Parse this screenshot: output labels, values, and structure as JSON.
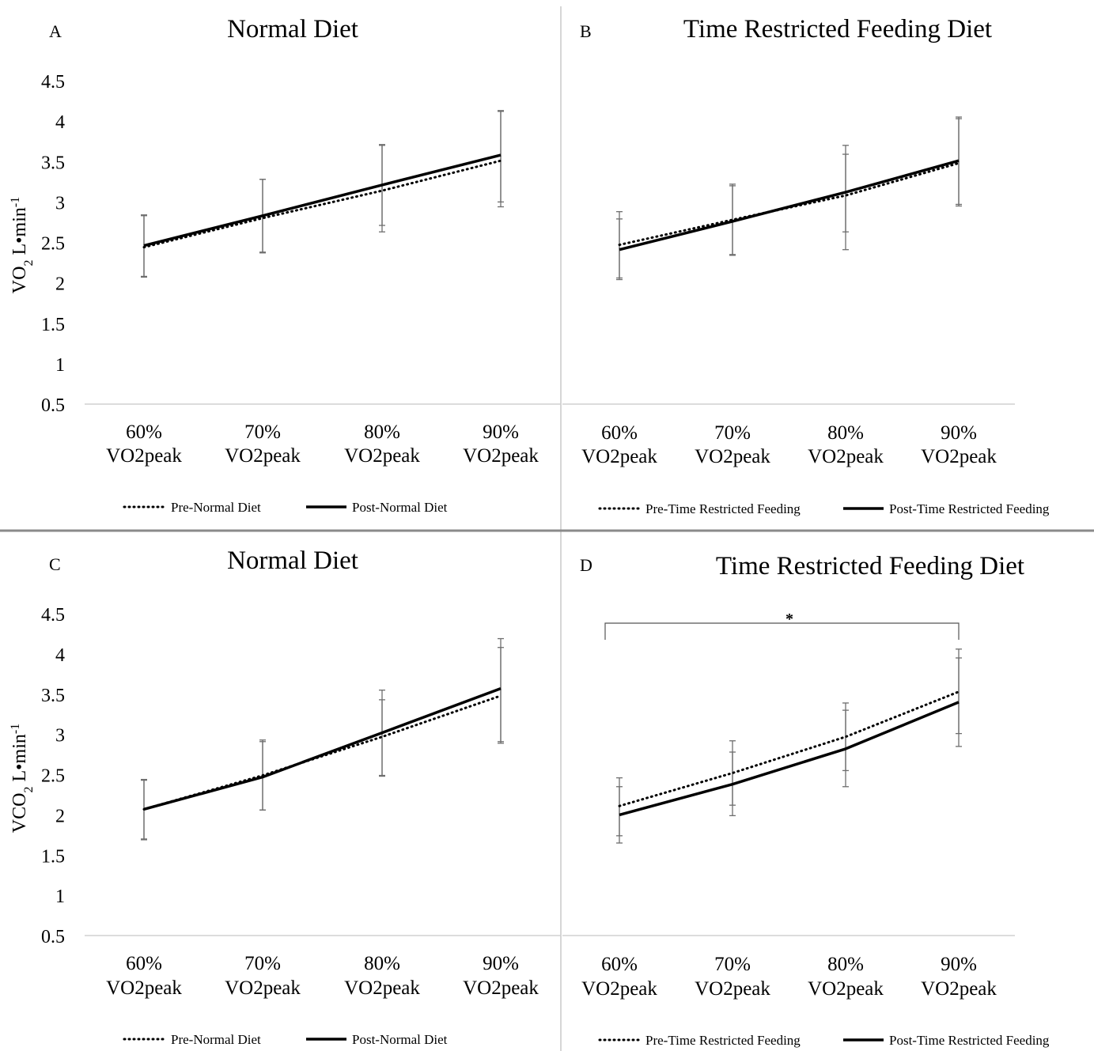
{
  "chart_data": [
    {
      "panel": "A",
      "type": "line",
      "title": "Normal Diet",
      "ylabel": "VO2 L•min-1",
      "ylabel_main": "VO",
      "ylabel_sub": "2",
      "ylabel_unit": " L•min",
      "ylabel_sup": "-1",
      "categories": [
        [
          "60%",
          "VO2peak"
        ],
        [
          "70%",
          "VO2peak"
        ],
        [
          "80%",
          "VO2peak"
        ],
        [
          "90%",
          "VO2peak"
        ]
      ],
      "yticks": [
        "0.5",
        "1",
        "1.5",
        "2",
        "2.5",
        "3",
        "3.5",
        "4",
        "4.5"
      ],
      "ylim": [
        0.5,
        4.5
      ],
      "series": [
        {
          "name": "Pre-Normal Diet",
          "style": "dotted",
          "values": [
            2.44,
            2.8,
            3.14,
            3.51
          ],
          "err_low": [
            2.07,
            2.37,
            2.63,
            2.94
          ],
          "err_high": [
            2.83,
            3.28,
            3.71,
            4.13
          ]
        },
        {
          "name": "Post-Normal Diet",
          "style": "solid",
          "values": [
            2.46,
            2.83,
            3.21,
            3.58
          ],
          "err_low": [
            2.08,
            2.38,
            2.71,
            3.0
          ],
          "err_high": [
            2.84,
            3.28,
            3.7,
            4.12
          ]
        }
      ]
    },
    {
      "panel": "B",
      "type": "line",
      "title": "Time Restricted Feeding Diet",
      "categories": [
        [
          "60%",
          "VO2peak"
        ],
        [
          "70%",
          "VO2peak"
        ],
        [
          "80%",
          "VO2peak"
        ],
        [
          "90%",
          "VO2peak"
        ]
      ],
      "ylim": [
        0.5,
        4.5
      ],
      "series": [
        {
          "name": "Pre-Time Restricted Feeding",
          "style": "dotted",
          "values": [
            2.47,
            2.78,
            3.08,
            3.48
          ],
          "err_low": [
            2.06,
            2.34,
            2.63,
            2.95
          ],
          "err_high": [
            2.88,
            3.22,
            3.59,
            4.03
          ]
        },
        {
          "name": "Post-Time Restricted Feeding",
          "style": "solid",
          "values": [
            2.41,
            2.76,
            3.12,
            3.51
          ],
          "err_low": [
            2.04,
            2.35,
            2.41,
            2.97
          ],
          "err_high": [
            2.79,
            3.2,
            3.7,
            4.05
          ]
        }
      ]
    },
    {
      "panel": "C",
      "type": "line",
      "title": "Normal Diet",
      "ylabel": "VCO2 L•min-1",
      "ylabel_main": "VCO",
      "ylabel_sub": "2",
      "ylabel_unit": " L•min",
      "ylabel_sup": "-1",
      "categories": [
        [
          "60%",
          "VO2peak"
        ],
        [
          "70%",
          "VO2peak"
        ],
        [
          "80%",
          "VO2peak"
        ],
        [
          "90%",
          "VO2peak"
        ]
      ],
      "yticks": [
        "0.5",
        "1",
        "1.5",
        "2",
        "2.5",
        "3",
        "3.5",
        "4",
        "4.5"
      ],
      "ylim": [
        0.5,
        4.5
      ],
      "series": [
        {
          "name": "Pre-Normal Diet",
          "style": "dotted",
          "values": [
            2.07,
            2.49,
            2.97,
            3.48
          ],
          "err_low": [
            1.7,
            2.06,
            2.48,
            2.89
          ],
          "err_high": [
            2.43,
            2.93,
            3.43,
            4.08
          ]
        },
        {
          "name": "Post-Normal Diet",
          "style": "solid",
          "values": [
            2.07,
            2.47,
            3.02,
            3.57
          ],
          "err_low": [
            1.69,
            2.06,
            2.49,
            2.91
          ],
          "err_high": [
            2.44,
            2.91,
            3.55,
            4.19
          ]
        }
      ]
    },
    {
      "panel": "D",
      "type": "line",
      "title": "Time Restricted Feeding Diet",
      "annotation": "*",
      "categories": [
        [
          "60%",
          "VO2peak"
        ],
        [
          "70%",
          "VO2peak"
        ],
        [
          "80%",
          "VO2peak"
        ],
        [
          "90%",
          "VO2peak"
        ]
      ],
      "ylim": [
        0.5,
        4.5
      ],
      "series": [
        {
          "name": "Pre-Time Restricted Feeding",
          "style": "dotted",
          "values": [
            2.11,
            2.52,
            2.97,
            3.53
          ],
          "err_low": [
            1.74,
            2.12,
            2.55,
            3.01
          ],
          "err_high": [
            2.46,
            2.92,
            3.39,
            4.06
          ]
        },
        {
          "name": "Post-Time Restricted Feeding",
          "style": "solid",
          "values": [
            2.0,
            2.38,
            2.82,
            3.4
          ],
          "err_low": [
            1.65,
            1.99,
            2.35,
            2.85
          ],
          "err_high": [
            2.35,
            2.78,
            3.3,
            3.95
          ]
        }
      ]
    }
  ]
}
